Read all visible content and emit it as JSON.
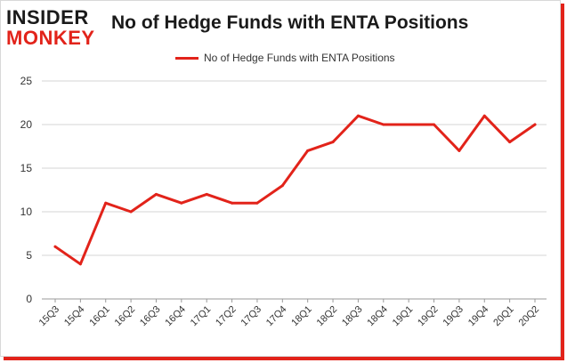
{
  "brand": {
    "logo_top": "INSIDER",
    "logo_bottom": "MONKEY",
    "accent": "#e2231a"
  },
  "chart_data": {
    "type": "line",
    "title": "No of Hedge Funds with ENTA Positions",
    "xlabel": "",
    "ylabel": "",
    "ylim": [
      0,
      25
    ],
    "yticks": [
      0,
      5,
      10,
      15,
      20,
      25
    ],
    "grid": true,
    "legend_position": "top",
    "categories": [
      "15Q3",
      "15Q4",
      "16Q1",
      "16Q2",
      "16Q3",
      "16Q4",
      "17Q1",
      "17Q2",
      "17Q3",
      "17Q4",
      "18Q1",
      "18Q2",
      "18Q3",
      "18Q4",
      "19Q1",
      "19Q2",
      "19Q3",
      "19Q4",
      "20Q1",
      "20Q2"
    ],
    "series": [
      {
        "name": "No of Hedge Funds with ENTA Positions",
        "color": "#e2231a",
        "values": [
          6,
          4,
          11,
          10,
          12,
          11,
          12,
          11,
          11,
          13,
          17,
          18,
          21,
          20,
          20,
          20,
          17,
          21,
          18,
          20
        ]
      }
    ]
  }
}
